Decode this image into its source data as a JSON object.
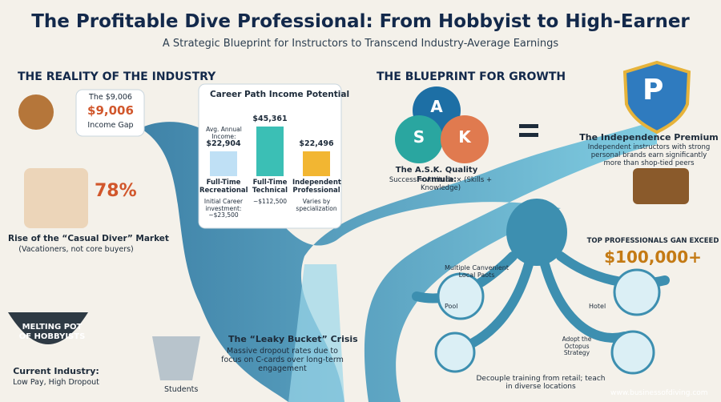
{
  "header": {
    "title": "The Profitable Dive Professional: From Hobbyist to High-Earner",
    "subtitle": "A Strategic Blueprint for Instructors to Transcend Industry-Average Earnings"
  },
  "reality": {
    "heading": "THE REALITY OF THE INDUSTRY",
    "gap": {
      "line1": "The $9,006",
      "amount": "$9,006",
      "label": "Income Gap"
    },
    "casual": {
      "percent": "78%",
      "title": "Rise of the “Casual Diver” Market",
      "note": "(Vacationers, not core buyers)"
    },
    "pot": {
      "label": "MELTING POT OF HOBBYISTS",
      "title": "Current Industry:",
      "note": "Low Pay, High Dropout"
    },
    "bucket": {
      "title": "The “Leaky Bucket” Crisis",
      "note": "Massive dropout rates due to focus on C-cards over long-term engagement",
      "students": "Students"
    }
  },
  "income_chart": {
    "title": "Career Path Income Potential",
    "categories": [
      "Full-Time Recreational",
      "Full-Time Technical",
      "Independent Professional"
    ],
    "values": [
      22904,
      45361,
      22496
    ],
    "value_labels": [
      "$22,904",
      "$45,361",
      "$22,496"
    ],
    "value_caption": "Avg. Annual Income:",
    "colors": [
      "#bfe0f5",
      "#3bbfb5",
      "#f2b632"
    ],
    "notes": [
      "Initial Career investment: ~$23,500",
      "~$112,500",
      "Varies by specialization"
    ]
  },
  "growth": {
    "heading": "THE BLUEPRINT FOR GROWTH",
    "ask": {
      "letters": [
        "A",
        "S",
        "K"
      ],
      "title": "The A.S.K. Quality Formula:",
      "formula": "Success = Attitude × (Skills + Knowledge)"
    },
    "premium": {
      "badge": "P",
      "title": "The Independence Premium",
      "note": "Independent instructors with strong personal brands earn significantly more than shop-tied peers"
    },
    "top": {
      "label": "TOP PROFESSIONALS GAN EXCEED",
      "amount": "$100,000+"
    },
    "octopus": {
      "pools": "Multiple Canvenient Local Paots",
      "pool": "Pool",
      "hotel": "Hotel",
      "strategy": "Adopt the Octopus Strategy",
      "note": "Decouple training from retail; teach in diverse locations"
    }
  },
  "footer": {
    "url": "www.businessofdiving.com"
  }
}
